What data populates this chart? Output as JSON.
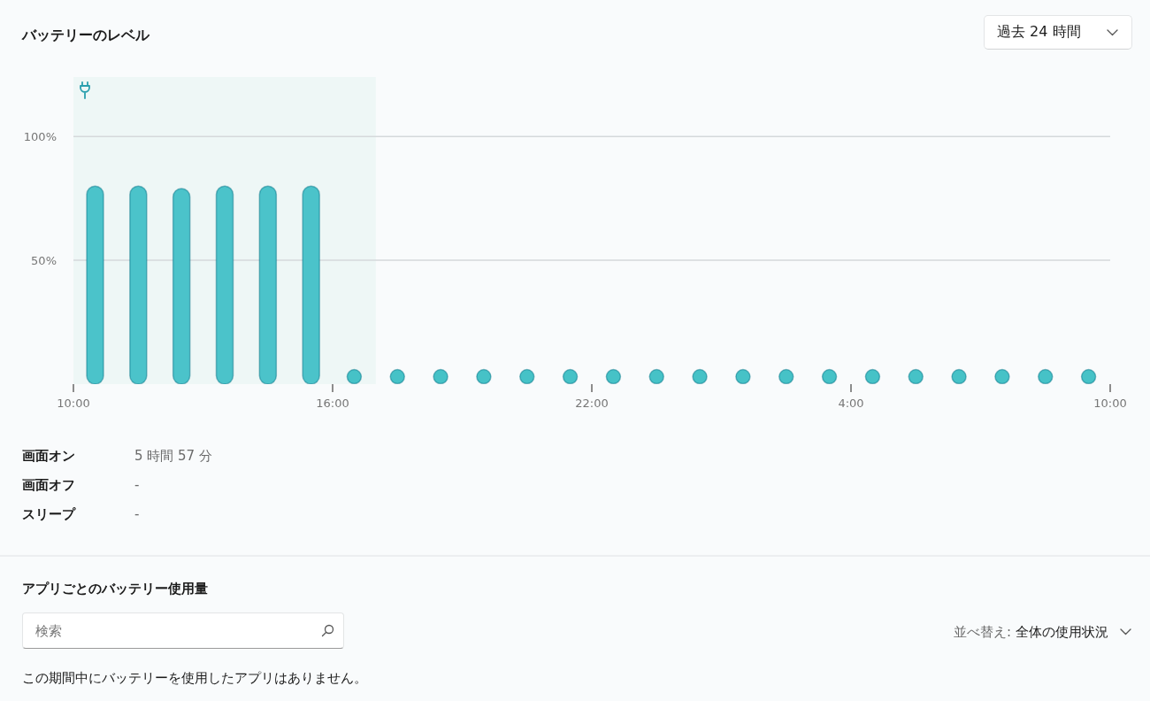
{
  "chart_data": {
    "type": "bar",
    "title": "バッテリーのレベル",
    "xlim": [
      "2000-01-01T10:00",
      "2000-01-02T10:00"
    ],
    "xticks": [
      {
        "value": "2000-01-01T10:00",
        "label": "10:00"
      },
      {
        "value": "2000-01-01T16:00",
        "label": "16:00"
      },
      {
        "value": "2000-01-01T22:00",
        "label": "22:00"
      },
      {
        "value": "2000-01-02T04:00",
        "label": "4:00"
      },
      {
        "value": "2000-01-02T10:00",
        "label": "10:00"
      }
    ],
    "ylim": [
      0,
      124
    ],
    "yticks": [
      {
        "value": 50,
        "label": "50%"
      },
      {
        "value": 100,
        "label": "100%"
      }
    ],
    "series": [
      {
        "color": "#4bc3ca",
        "x": [
          "2000-01-01T10:30",
          "2000-01-01T11:30",
          "2000-01-01T12:30",
          "2000-01-01T13:30",
          "2000-01-01T14:30",
          "2000-01-01T15:30"
        ],
        "values": [
          80,
          80,
          79,
          80,
          80,
          80
        ]
      },
      {
        "type": "scatter",
        "color": "#46c2c7",
        "x": [
          "2000-01-01T16:30",
          "2000-01-01T17:30",
          "2000-01-01T18:30",
          "2000-01-01T19:30",
          "2000-01-01T20:30",
          "2000-01-01T21:30",
          "2000-01-01T22:30",
          "2000-01-01T23:30",
          "2000-01-02T00:30",
          "2000-01-02T01:30",
          "2000-01-02T02:30",
          "2000-01-02T03:30",
          "2000-01-02T04:30",
          "2000-01-02T05:30",
          "2000-01-02T06:30",
          "2000-01-02T07:30",
          "2000-01-02T08:30",
          "2000-01-02T09:30"
        ],
        "values": [
          3,
          3,
          3,
          3,
          3,
          3,
          3,
          3,
          3,
          3,
          3,
          3,
          3,
          3,
          3,
          3,
          3,
          3
        ]
      }
    ],
    "marker": "circle",
    "grid": "y",
    "bands": [
      {
        "axis": "x",
        "from": "2000-01-01T10:00",
        "to": "2000-01-01T17:00",
        "color": "#eef7f6"
      }
    ],
    "annotations": [
      "過去 24 時間",
      "画面オン",
      "5 時間 57 分",
      "画面オフ",
      "-",
      "スリープ",
      "-",
      "アプリごとのバッテリー使用量",
      "検索",
      "並べ替え:",
      "全体の使用状況",
      "この期間中にバッテリーを使用したアプリはありません。"
    ]
  }
}
